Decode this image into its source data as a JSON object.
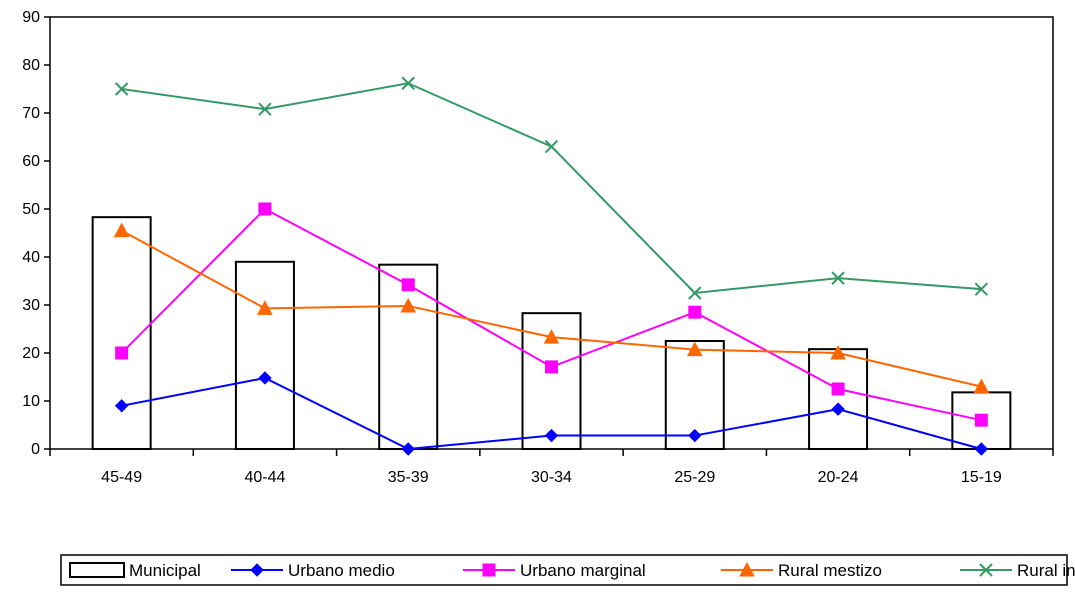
{
  "chart_data": {
    "type": "bar",
    "title": "",
    "xlabel": "",
    "ylabel": "",
    "categories": [
      "45-49",
      "40-44",
      "35-39",
      "30-34",
      "25-29",
      "20-24",
      "15-19"
    ],
    "ylim": [
      0,
      90
    ],
    "yticks": [
      0,
      10,
      20,
      30,
      40,
      50,
      60,
      70,
      80,
      90
    ],
    "grid": false,
    "legend": "bottom",
    "series": [
      {
        "name": "Municipal",
        "kind": "bar",
        "color": "#000000",
        "fill": "#ffffff",
        "values": [
          48.3,
          39.0,
          38.4,
          28.3,
          22.5,
          20.8,
          11.8
        ]
      },
      {
        "name": "Urbano medio",
        "kind": "line",
        "marker": "diamond",
        "color": "#0000ff",
        "values": [
          9.0,
          14.8,
          0.0,
          2.8,
          2.8,
          8.3,
          0.0
        ]
      },
      {
        "name": "Urbano marginal",
        "kind": "line",
        "marker": "square",
        "color": "#ff00ff",
        "values": [
          20.0,
          50.0,
          34.2,
          17.1,
          28.5,
          12.5,
          6.0
        ]
      },
      {
        "name": "Rural mestizo",
        "kind": "line",
        "marker": "triangle",
        "color": "#ff6600",
        "values": [
          45.5,
          29.3,
          29.8,
          23.3,
          20.7,
          20.0,
          13.0
        ]
      },
      {
        "name": "Rural indígena",
        "kind": "line",
        "marker": "x",
        "color": "#339966",
        "values": [
          75.0,
          70.8,
          76.2,
          63.0,
          32.5,
          35.6,
          33.3
        ]
      }
    ]
  }
}
